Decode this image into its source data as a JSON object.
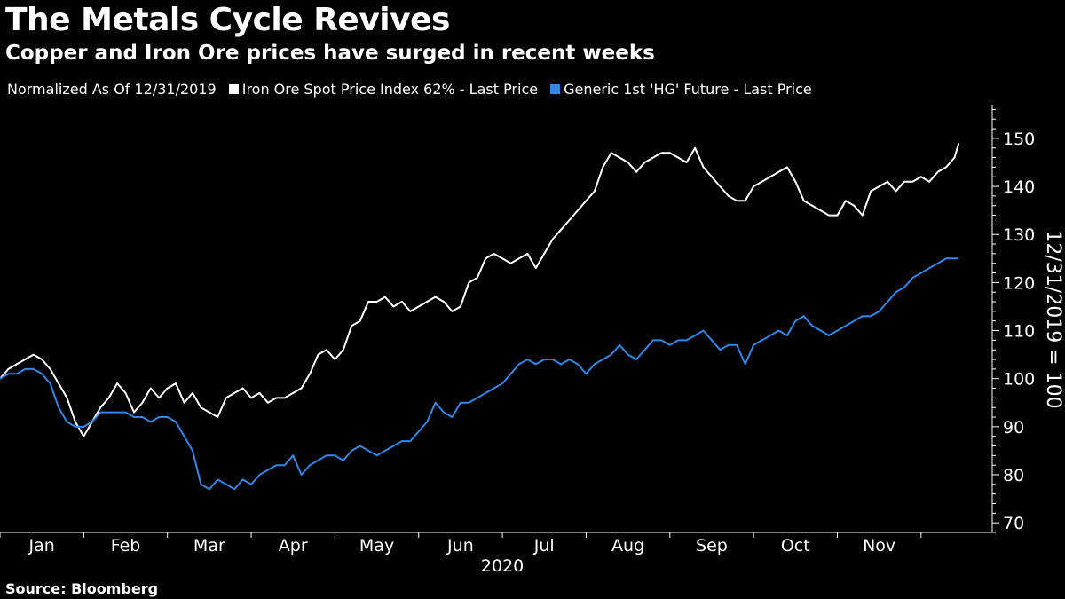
{
  "header": {
    "title": "The Metals Cycle Revives",
    "subtitle": "Copper and Iron Ore prices have surged in recent weeks"
  },
  "legend": {
    "note": "Normalized As Of 12/31/2019",
    "items": [
      {
        "label": "Iron Ore Spot Price Index 62% - Last Price",
        "color": "#ffffff"
      },
      {
        "label": "Generic 1st 'HG' Future - Last Price",
        "color": "#2f87e6"
      }
    ]
  },
  "footer": {
    "source": "Source: Bloomberg"
  },
  "chart_data": {
    "type": "line",
    "title": "The Metals Cycle Revives",
    "subtitle": "Copper and Iron Ore prices have surged in recent weeks",
    "ylabel": "12/31/2019 = 100",
    "xlabel": "2020",
    "ylim": [
      68,
      157
    ],
    "yticks": [
      70,
      80,
      90,
      100,
      110,
      120,
      130,
      140,
      150
    ],
    "xlim": [
      0,
      11.85
    ],
    "month_labels": [
      "Jan",
      "Feb",
      "Mar",
      "Apr",
      "May",
      "Jun",
      "Jul",
      "Aug",
      "Sep",
      "Oct",
      "Nov"
    ],
    "year_label": "2020",
    "grid": false,
    "series": [
      {
        "name": "Iron Ore Spot Price Index 62% - Last Price",
        "color": "#ffffff",
        "x": [
          0,
          0.1,
          0.2,
          0.3,
          0.4,
          0.5,
          0.6,
          0.7,
          0.8,
          0.9,
          1.0,
          1.1,
          1.2,
          1.3,
          1.4,
          1.5,
          1.6,
          1.7,
          1.8,
          1.9,
          2.0,
          2.1,
          2.2,
          2.3,
          2.4,
          2.5,
          2.6,
          2.7,
          2.8,
          2.9,
          3.0,
          3.1,
          3.2,
          3.3,
          3.4,
          3.5,
          3.6,
          3.7,
          3.8,
          3.9,
          4.0,
          4.1,
          4.2,
          4.3,
          4.4,
          4.5,
          4.6,
          4.7,
          4.8,
          4.9,
          5.0,
          5.1,
          5.2,
          5.3,
          5.4,
          5.5,
          5.6,
          5.7,
          5.8,
          5.9,
          6.0,
          6.1,
          6.2,
          6.3,
          6.4,
          6.5,
          6.6,
          6.7,
          6.8,
          6.9,
          7.0,
          7.1,
          7.2,
          7.3,
          7.4,
          7.5,
          7.6,
          7.7,
          7.8,
          7.9,
          8.0,
          8.1,
          8.2,
          8.3,
          8.4,
          8.5,
          8.6,
          8.7,
          8.8,
          8.9,
          9.0,
          9.1,
          9.2,
          9.3,
          9.4,
          9.5,
          9.6,
          9.7,
          9.8,
          9.9,
          10.0,
          10.1,
          10.2,
          10.3,
          10.4,
          10.5,
          10.6,
          10.7,
          10.8,
          10.9,
          11.0,
          11.1,
          11.2,
          11.3,
          11.35,
          11.4,
          11.45
        ],
        "values": [
          100,
          102,
          103,
          104,
          105,
          104,
          102,
          99,
          96,
          91,
          88,
          91,
          94,
          96,
          99,
          97,
          93,
          95,
          98,
          96,
          98,
          99,
          95,
          97,
          94,
          93,
          92,
          96,
          97,
          98,
          96,
          97,
          95,
          96,
          96,
          97,
          98,
          101,
          105,
          106,
          104,
          106,
          111,
          112,
          116,
          116,
          117,
          115,
          116,
          114,
          115,
          116,
          117,
          116,
          114,
          115,
          120,
          121,
          125,
          126,
          125,
          124,
          125,
          126,
          123,
          126,
          129,
          131,
          133,
          135,
          137,
          139,
          144,
          147,
          146,
          145,
          143,
          145,
          146,
          147,
          147,
          146,
          145,
          148,
          144,
          142,
          140,
          138,
          137,
          137,
          140,
          141,
          142,
          143,
          144,
          141,
          137,
          136,
          135,
          134,
          134,
          137,
          136,
          134,
          139,
          140,
          141,
          139,
          141,
          141,
          142,
          141,
          143,
          144,
          145,
          146,
          149
        ]
      },
      {
        "name": "Generic 1st 'HG' Future - Last Price",
        "color": "#2f87e6",
        "x": [
          0,
          0.1,
          0.2,
          0.3,
          0.4,
          0.5,
          0.6,
          0.7,
          0.8,
          0.9,
          1.0,
          1.1,
          1.2,
          1.3,
          1.4,
          1.5,
          1.6,
          1.7,
          1.8,
          1.9,
          2.0,
          2.1,
          2.2,
          2.3,
          2.4,
          2.5,
          2.6,
          2.7,
          2.8,
          2.9,
          3.0,
          3.1,
          3.2,
          3.3,
          3.4,
          3.5,
          3.6,
          3.7,
          3.8,
          3.9,
          4.0,
          4.1,
          4.2,
          4.3,
          4.4,
          4.5,
          4.6,
          4.7,
          4.8,
          4.9,
          5.0,
          5.1,
          5.2,
          5.3,
          5.4,
          5.5,
          5.6,
          5.7,
          5.8,
          5.9,
          6.0,
          6.1,
          6.2,
          6.3,
          6.4,
          6.5,
          6.6,
          6.7,
          6.8,
          6.9,
          7.0,
          7.1,
          7.2,
          7.3,
          7.4,
          7.5,
          7.6,
          7.7,
          7.8,
          7.9,
          8.0,
          8.1,
          8.2,
          8.3,
          8.4,
          8.5,
          8.6,
          8.7,
          8.8,
          8.9,
          9.0,
          9.1,
          9.2,
          9.3,
          9.4,
          9.5,
          9.6,
          9.7,
          9.8,
          9.9,
          10.0,
          10.1,
          10.2,
          10.3,
          10.4,
          10.5,
          10.6,
          10.7,
          10.8,
          10.9,
          11.0,
          11.1,
          11.2,
          11.3,
          11.35,
          11.4,
          11.45
        ],
        "values": [
          100,
          101,
          101,
          102,
          102,
          101,
          99,
          94,
          91,
          90,
          90,
          91,
          93,
          93,
          93,
          93,
          92,
          92,
          91,
          92,
          92,
          91,
          88,
          85,
          78,
          77,
          79,
          78,
          77,
          79,
          78,
          80,
          81,
          82,
          82,
          84,
          80,
          82,
          83,
          84,
          84,
          83,
          85,
          86,
          85,
          84,
          85,
          86,
          87,
          87,
          89,
          91,
          95,
          93,
          92,
          95,
          95,
          96,
          97,
          98,
          99,
          101,
          103,
          104,
          103,
          104,
          104,
          103,
          104,
          103,
          101,
          103,
          104,
          105,
          107,
          105,
          104,
          106,
          108,
          108,
          107,
          108,
          108,
          109,
          110,
          108,
          106,
          107,
          107,
          103,
          107,
          108,
          109,
          110,
          109,
          112,
          113,
          111,
          110,
          109,
          110,
          111,
          112,
          113,
          113,
          114,
          116,
          118,
          119,
          121,
          122,
          123,
          124,
          125,
          125,
          125,
          125
        ]
      }
    ]
  }
}
